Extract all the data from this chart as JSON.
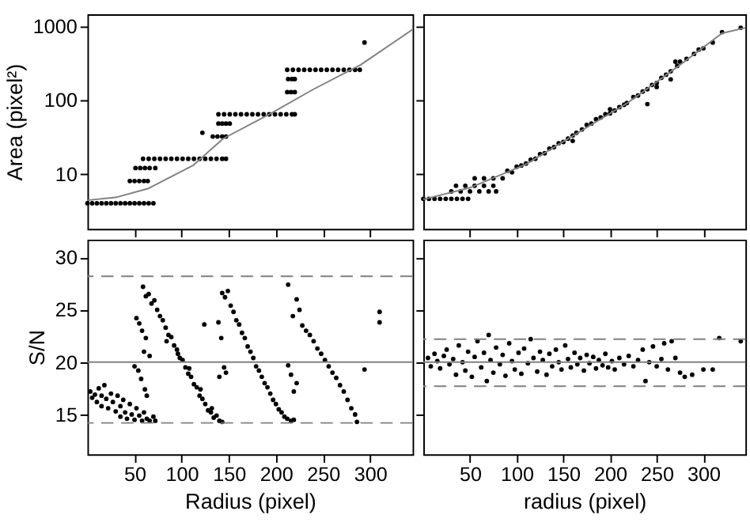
{
  "chart_data": [
    {
      "type": "scatter",
      "ylabel": "Area (pixel²)",
      "xlim": [
        0,
        345
      ],
      "xticks": [
        50,
        100,
        150,
        200,
        250,
        300
      ],
      "ylim": [
        1.8,
        1450
      ],
      "yticks": [
        10,
        100,
        1000
      ],
      "log": "y",
      "tick_labels": "y",
      "grid": false,
      "marker": "circle",
      "series": [
        {
          "color": "#000000",
          "x": [
            0,
            5,
            10,
            15,
            20,
            25,
            30,
            35,
            40,
            45,
            50,
            55,
            60,
            65,
            70,
            45,
            50,
            55,
            60,
            64,
            51,
            56,
            61,
            66,
            72,
            59,
            65,
            71,
            77,
            83,
            89,
            95,
            101,
            107,
            113,
            119,
            125,
            131,
            137,
            143,
            147,
            122,
            133,
            138,
            143,
            147,
            139,
            143,
            147,
            151,
            139,
            145,
            151,
            157,
            163,
            169,
            175,
            181,
            187,
            193,
            199,
            205,
            211,
            217,
            220,
            212,
            216,
            220,
            213,
            217,
            220,
            212,
            218,
            224,
            230,
            236,
            242,
            248,
            254,
            260,
            266,
            272,
            278,
            284,
            289,
            294
          ],
          "values": [
            4,
            4,
            4,
            4,
            4,
            4,
            4,
            4,
            4,
            4,
            4,
            4,
            4,
            4,
            4,
            8,
            8,
            8,
            8,
            8,
            12,
            12,
            12,
            12,
            12,
            16,
            16,
            16,
            16,
            16,
            16,
            16,
            16,
            16,
            16,
            16,
            16,
            16,
            16,
            16,
            16,
            36,
            32,
            32,
            32,
            32,
            48,
            48,
            48,
            48,
            64,
            64,
            64,
            64,
            64,
            64,
            64,
            64,
            64,
            64,
            64,
            64,
            64,
            64,
            64,
            128,
            128,
            128,
            192,
            192,
            192,
            256,
            256,
            256,
            256,
            256,
            256,
            256,
            256,
            256,
            256,
            256,
            256,
            256,
            256,
            600
          ]
        },
        {
          "type": "line",
          "color": "#808080",
          "line_style": "solid",
          "marker": "none",
          "x": [
            0,
            30,
            64,
            112,
            144,
            192,
            240,
            290,
            345
          ],
          "values": [
            4.4,
            4.8,
            6.3,
            13,
            30,
            63,
            140,
            300,
            900
          ]
        }
      ]
    },
    {
      "type": "scatter",
      "xlim": [
        0,
        345
      ],
      "xticks": [
        50,
        100,
        150,
        200,
        250,
        300
      ],
      "ylim": [
        1.8,
        1450
      ],
      "yticks": [
        10,
        100,
        1000
      ],
      "log": "y",
      "tick_labels": false,
      "grid": false,
      "marker": "circle",
      "series": [
        {
          "color": "#000000",
          "x": [
            0,
            6,
            12,
            18,
            24,
            30,
            36,
            42,
            48,
            30,
            40,
            50,
            60,
            70,
            78,
            35,
            45,
            55,
            65,
            75,
            55,
            65,
            75,
            85,
            90,
            95,
            100,
            105,
            110,
            115,
            120,
            125,
            130,
            135,
            140,
            145,
            150,
            155,
            160,
            164,
            170,
            175,
            180,
            185,
            190,
            195,
            200,
            205,
            210,
            215,
            218,
            225,
            230,
            235,
            240,
            245,
            250,
            255,
            260,
            265,
            272,
            275,
            282,
            290,
            295,
            300,
            310,
            320,
            340,
            160,
            200,
            250,
            270,
            265,
            240
          ],
          "values": [
            4.6,
            4.6,
            4.6,
            4.6,
            4.6,
            4.6,
            4.6,
            4.6,
            4.6,
            5.8,
            5.8,
            5.8,
            5.8,
            5.8,
            5.8,
            6.9,
            6.9,
            6.9,
            6.9,
            6.9,
            8.7,
            8.7,
            8.7,
            8.7,
            11,
            10.5,
            12.5,
            13,
            13.8,
            15.5,
            16,
            18.5,
            19,
            22,
            23,
            26,
            27,
            30,
            33,
            36,
            40,
            46,
            48,
            55,
            58,
            64,
            66,
            72,
            80,
            86,
            91,
            110,
            115,
            130,
            140,
            160,
            170,
            200,
            220,
            245,
            290,
            330,
            360,
            420,
            480,
            500,
            600,
            830,
            950,
            28,
            75,
            150,
            330,
            190,
            88
          ]
        },
        {
          "type": "line",
          "color": "#808080",
          "line_style": "solid",
          "marker": "none",
          "x": [
            0,
            50,
            110,
            164,
            218,
            272,
            320,
            345
          ],
          "values": [
            4.5,
            6.5,
            13.5,
            35,
            90,
            280,
            800,
            950
          ]
        }
      ]
    },
    {
      "type": "scatter",
      "xlabel": "Radius (pixel)",
      "ylabel": "S/N",
      "xlim": [
        0,
        345
      ],
      "xticks": [
        50,
        100,
        150,
        200,
        250,
        300
      ],
      "ylim": [
        11.2,
        31.7
      ],
      "yticks": [
        15,
        20,
        25,
        30
      ],
      "grid": false,
      "marker": "circle",
      "ref_lines": [
        {
          "axis": "y",
          "value": 28.2,
          "color": "#808080",
          "line_style": "dashed"
        },
        {
          "axis": "y",
          "value": 20,
          "color": "#808080",
          "line_style": "solid"
        },
        {
          "axis": "y",
          "value": 14.2,
          "color": "#808080",
          "line_style": "dashed"
        }
      ],
      "series": [
        {
          "color": "#000000",
          "x": [
            3,
            5,
            8,
            10,
            12,
            15,
            15,
            18,
            20,
            22,
            25,
            27,
            30,
            32,
            35,
            35,
            38,
            40,
            42,
            45,
            47,
            50,
            52,
            55,
            58,
            60,
            63,
            66,
            70,
            72,
            59,
            62,
            65,
            68,
            71,
            74,
            77,
            80,
            83,
            86,
            89,
            92,
            95,
            98,
            101,
            104,
            107,
            110,
            113,
            116,
            119,
            122,
            125,
            128,
            131,
            134,
            137,
            140,
            143,
            84,
            96,
            108,
            120,
            132,
            52,
            55,
            58,
            62,
            60,
            66,
            50,
            54,
            57,
            61,
            63,
            124,
            143,
            146,
            149,
            152,
            155,
            158,
            161,
            164,
            167,
            170,
            173,
            176,
            179,
            182,
            185,
            188,
            191,
            194,
            197,
            200,
            203,
            206,
            209,
            212,
            216,
            219,
            139,
            142,
            145,
            147,
            140,
            213,
            218,
            222,
            225,
            228,
            232,
            236,
            240,
            244,
            248,
            252,
            256,
            260,
            264,
            268,
            272,
            276,
            280,
            284,
            286,
            213,
            216,
            219,
            222,
            294,
            310,
            310
          ],
          "values": [
            17.2,
            16.6,
            16.9,
            16.2,
            17.5,
            16.8,
            15.8,
            17.8,
            16.5,
            15.6,
            17.0,
            16.2,
            15.3,
            16.8,
            15.8,
            14.8,
            16.4,
            15.2,
            14.6,
            16.0,
            15.0,
            14.5,
            15.6,
            14.9,
            14.4,
            15.2,
            14.6,
            14.4,
            14.8,
            14.4,
            27.2,
            26.3,
            26.5,
            25.6,
            25.9,
            25.0,
            24.4,
            24.0,
            23.3,
            22.6,
            22.4,
            21.6,
            21.2,
            20.4,
            20.2,
            19.5,
            18.9,
            18.6,
            17.9,
            17.6,
            16.8,
            16.5,
            16.0,
            15.4,
            15.2,
            14.7,
            14.9,
            14.4,
            14.3,
            22.0,
            20.8,
            19.4,
            17.4,
            15.6,
            24.2,
            23.7,
            23.0,
            22.3,
            21.0,
            20.6,
            19.6,
            19.2,
            18.4,
            17.4,
            16.8,
            23.6,
            26.6,
            26.2,
            26.8,
            25.4,
            24.8,
            24.0,
            23.6,
            22.8,
            22.3,
            21.5,
            21.0,
            20.4,
            19.6,
            19.2,
            18.6,
            18.0,
            17.6,
            17.0,
            16.4,
            16.0,
            15.5,
            15.2,
            14.8,
            14.6,
            14.4,
            14.5,
            23.8,
            22.3,
            19.5,
            19.0,
            18.6,
            27.4,
            24.4,
            26.0,
            25.0,
            23.5,
            23.0,
            22.6,
            22.0,
            21.3,
            20.8,
            20.2,
            19.6,
            19.0,
            18.5,
            17.8,
            17.2,
            16.4,
            15.6,
            15.0,
            14.3,
            19.7,
            18.8,
            17.2,
            18.0,
            19.3,
            24.8,
            23.8
          ]
        }
      ]
    },
    {
      "type": "scatter",
      "xlabel": "radius (pixel)",
      "xlim": [
        0,
        345
      ],
      "xticks": [
        50,
        100,
        150,
        200,
        250,
        300
      ],
      "ylim": [
        11.2,
        31.7
      ],
      "yticks": [
        15,
        20,
        25,
        30
      ],
      "tick_labels": "x",
      "grid": false,
      "marker": "circle",
      "ref_lines": [
        {
          "axis": "y",
          "value": 22.2,
          "color": "#808080",
          "line_style": "dashed"
        },
        {
          "axis": "y",
          "value": 20,
          "color": "#808080",
          "line_style": "solid"
        },
        {
          "axis": "y",
          "value": 17.7,
          "color": "#808080",
          "line_style": "dashed"
        }
      ],
      "series": [
        {
          "color": "#000000",
          "x": [
            5,
            8,
            12,
            15,
            18,
            22,
            25,
            28,
            32,
            35,
            38,
            42,
            45,
            48,
            52,
            55,
            58,
            62,
            65,
            68,
            70,
            72,
            75,
            78,
            82,
            85,
            88,
            92,
            95,
            98,
            102,
            105,
            108,
            112,
            115,
            118,
            122,
            125,
            128,
            132,
            135,
            138,
            142,
            145,
            148,
            152,
            155,
            158,
            162,
            165,
            168,
            172,
            175,
            178,
            182,
            185,
            188,
            192,
            195,
            198,
            202,
            205,
            210,
            215,
            220,
            225,
            230,
            235,
            238,
            242,
            246,
            250,
            255,
            258,
            262,
            266,
            270,
            275,
            280,
            288,
            300,
            310,
            317,
            340
          ],
          "values": [
            20.4,
            19.6,
            20.8,
            20.1,
            19.4,
            20.6,
            21.2,
            19.8,
            20.3,
            18.8,
            21.6,
            20.0,
            19.2,
            21.0,
            18.6,
            20.5,
            22.0,
            19.5,
            20.9,
            18.2,
            22.6,
            20.2,
            19.0,
            21.4,
            19.8,
            20.7,
            18.7,
            21.8,
            20.1,
            19.3,
            20.9,
            18.9,
            21.3,
            19.9,
            22.2,
            20.4,
            19.1,
            21.0,
            20.2,
            18.8,
            20.8,
            19.6,
            21.2,
            20.0,
            19.3,
            21.6,
            20.3,
            19.5,
            20.9,
            19.8,
            20.4,
            19.2,
            20.7,
            19.9,
            20.5,
            19.4,
            20.2,
            19.7,
            20.8,
            19.5,
            20.1,
            19.3,
            20.4,
            19.8,
            20.6,
            19.6,
            20.2,
            21.2,
            18.2,
            20.0,
            21.5,
            19.6,
            20.3,
            21.8,
            19.3,
            22.0,
            20.4,
            19.0,
            18.6,
            18.8,
            19.3,
            19.3,
            22.3,
            22.0
          ]
        }
      ]
    }
  ]
}
